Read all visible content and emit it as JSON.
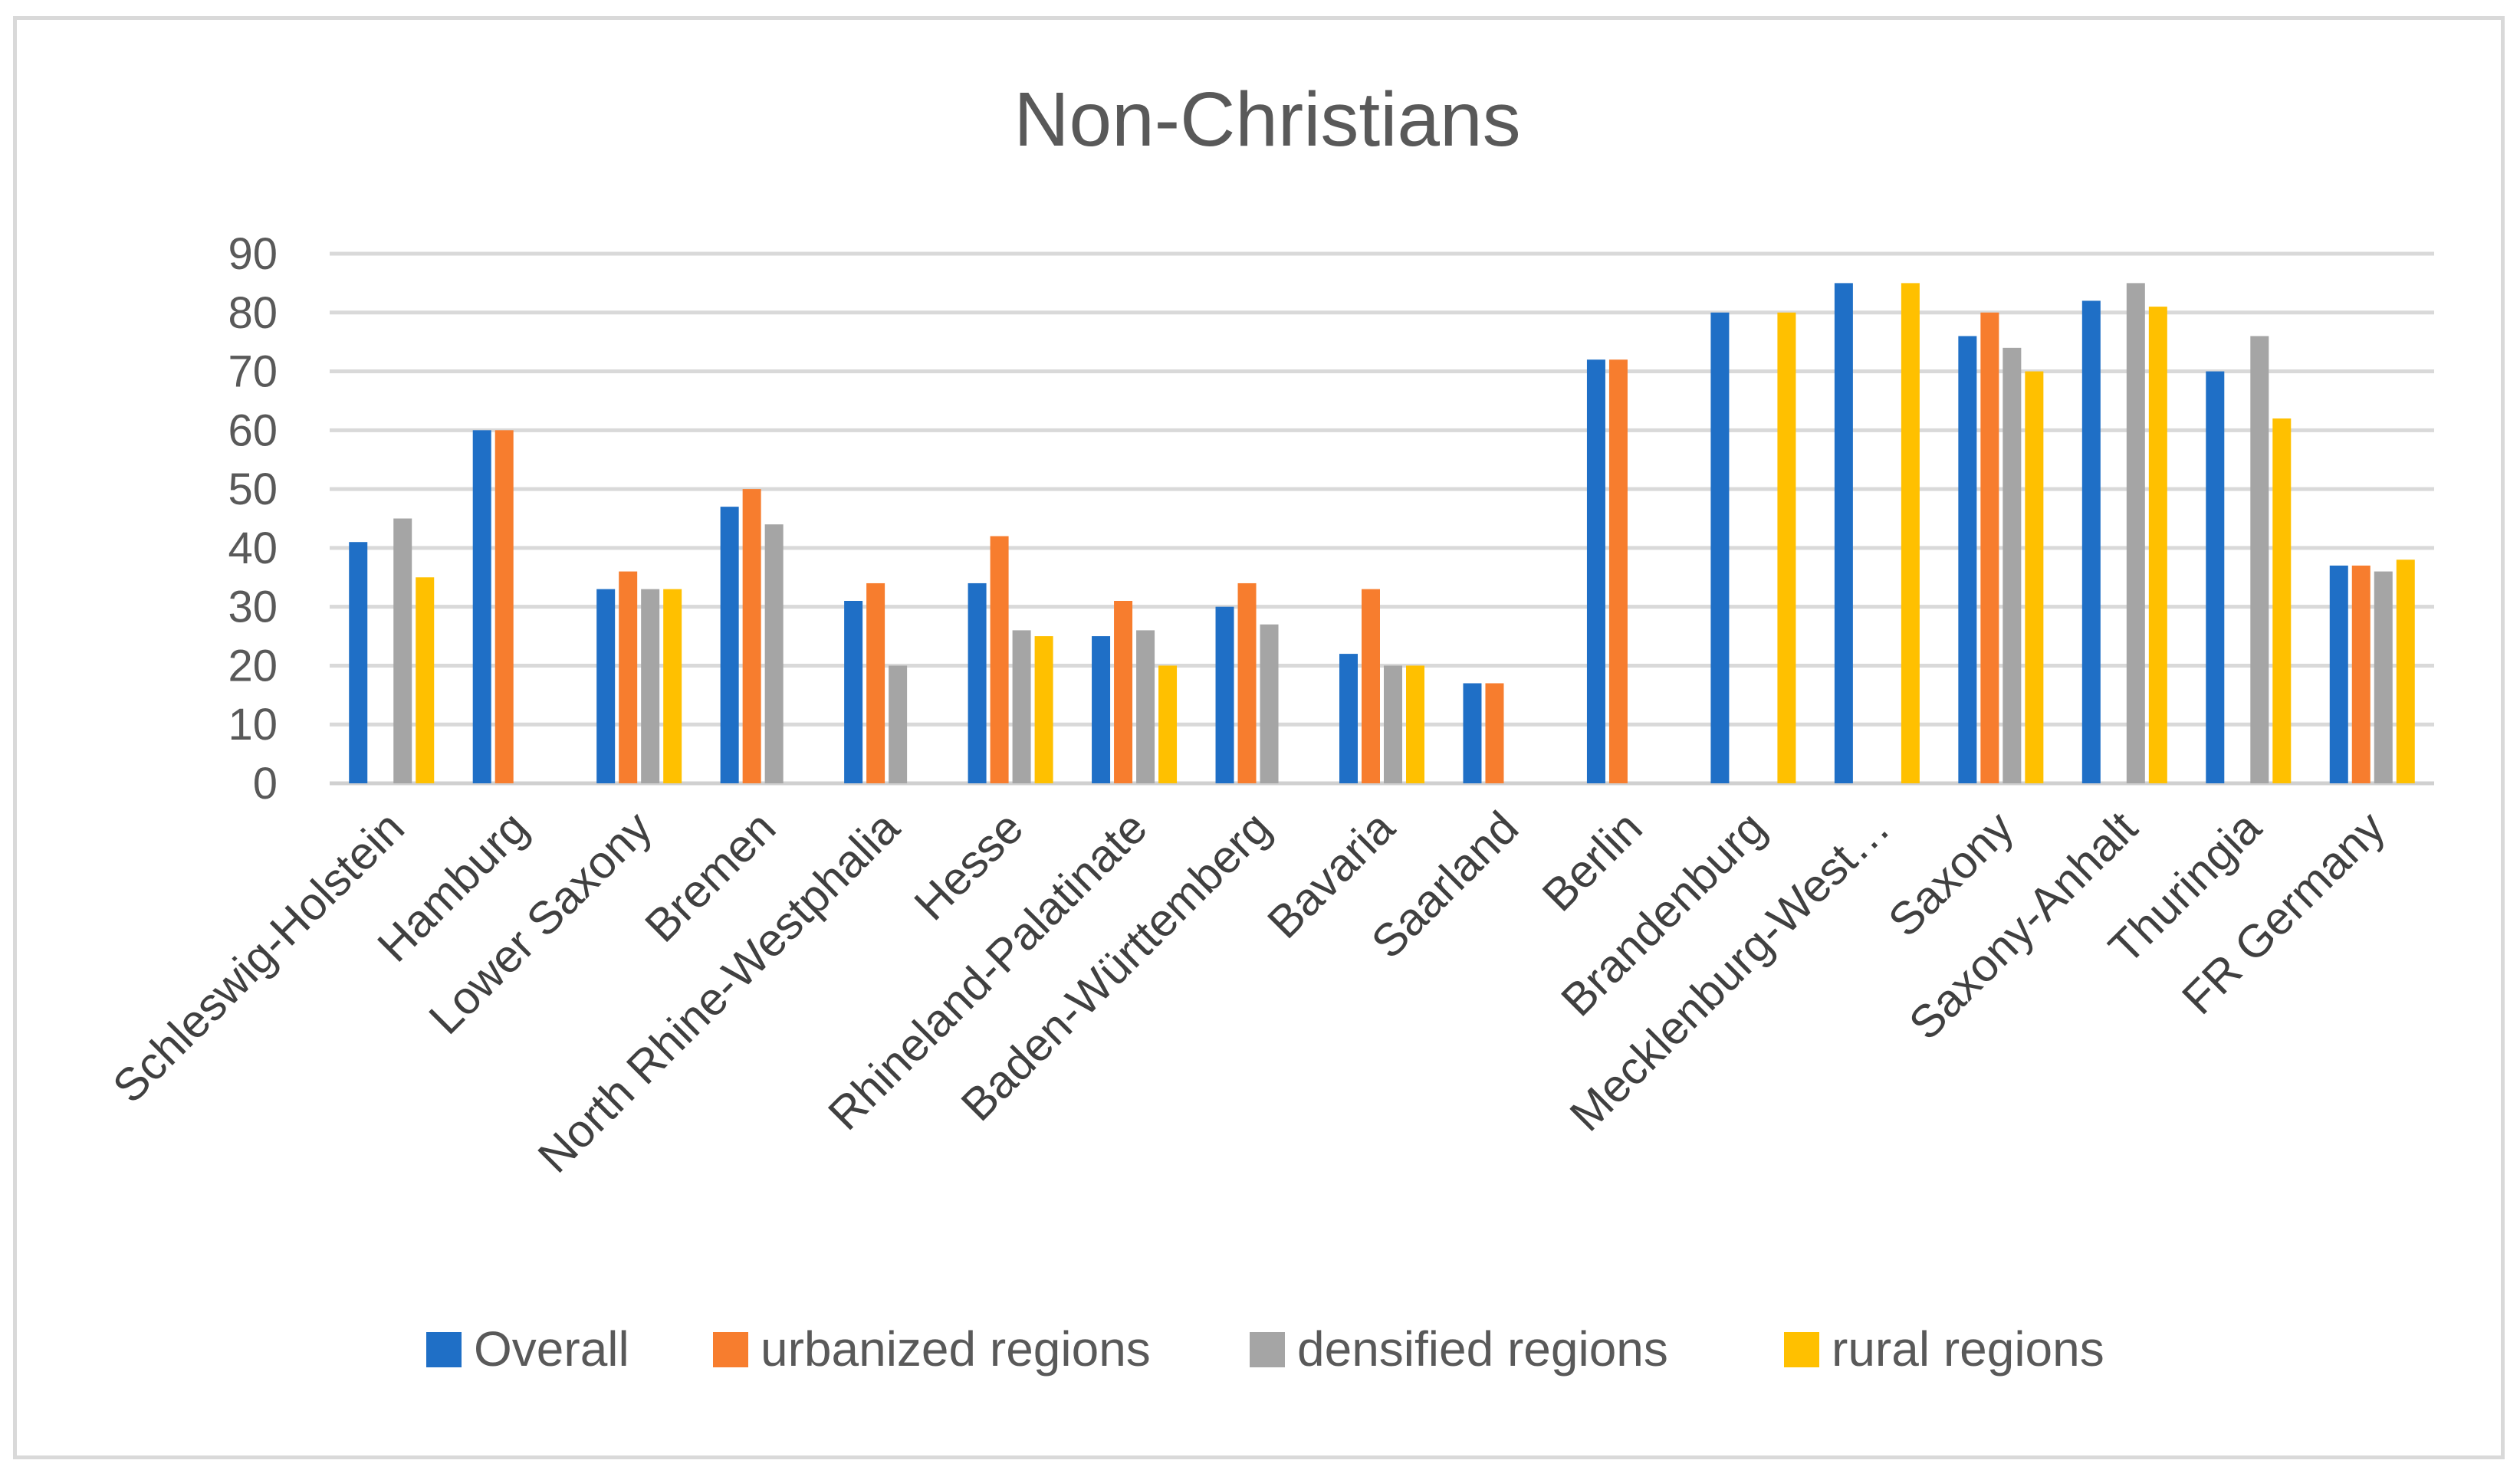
{
  "chart_data": {
    "type": "bar",
    "title": "Non-Christians",
    "xlabel": "",
    "ylabel": "",
    "ylim": [
      0,
      90
    ],
    "yticks": [
      0,
      10,
      20,
      30,
      40,
      50,
      60,
      70,
      80,
      90
    ],
    "grid": true,
    "legend_position": "bottom",
    "categories": [
      "Schleswig-Holstein",
      "Hamburg",
      "Lower Saxony",
      "Bremen",
      "North Rhine-Westphalia",
      "Hesse",
      "Rhineland-Palatinate",
      "Baden-Württemberg",
      "Bavaria",
      "Saarland",
      "Berlin",
      "Brandenburg",
      "Mecklenburg-West…",
      "Saxony",
      "Saxony-Anhalt",
      "Thuringia",
      "FR Germany"
    ],
    "series": [
      {
        "name": "Overall",
        "color": "#1f6fc6",
        "values": [
          41,
          60,
          33,
          47,
          31,
          34,
          25,
          30,
          22,
          17,
          72,
          80,
          85,
          76,
          82,
          70,
          37
        ]
      },
      {
        "name": "urbanized regions",
        "color": "#f77d2e",
        "values": [
          null,
          60,
          36,
          50,
          34,
          42,
          31,
          34,
          33,
          17,
          72,
          null,
          null,
          80,
          null,
          null,
          37
        ]
      },
      {
        "name": "densified regions",
        "color": "#a5a5a5",
        "values": [
          45,
          null,
          33,
          44,
          20,
          26,
          26,
          27,
          20,
          null,
          null,
          null,
          null,
          74,
          85,
          76,
          36
        ]
      },
      {
        "name": "rural regions",
        "color": "#ffc000",
        "values": [
          35,
          null,
          33,
          null,
          null,
          25,
          20,
          null,
          20,
          null,
          null,
          80,
          85,
          70,
          81,
          62,
          38
        ]
      }
    ]
  }
}
